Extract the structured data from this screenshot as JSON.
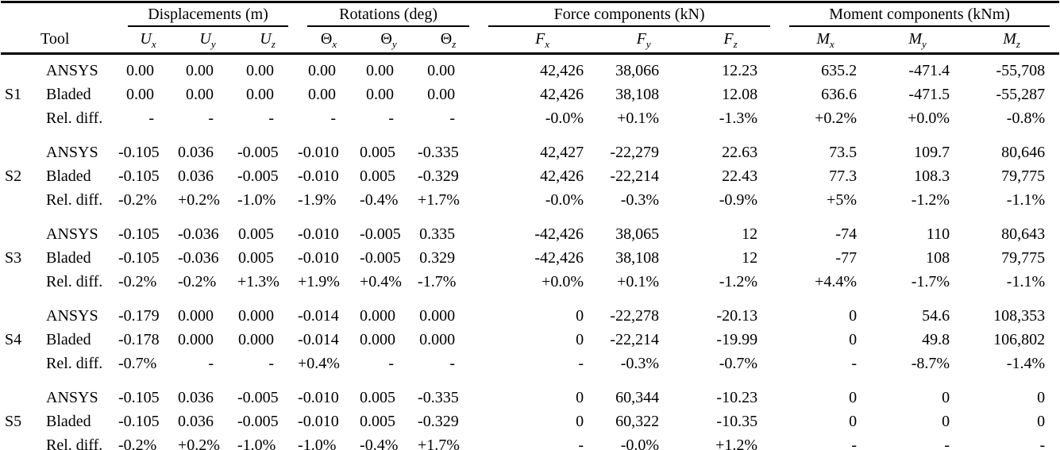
{
  "table": {
    "tool_header": "Tool",
    "row_types": [
      "ANSYS",
      "Bladed",
      "Rel. diff."
    ],
    "groups": [
      {
        "label": "Displacements (m)",
        "columns": [
          {
            "base": "U",
            "sub": "x",
            "italic": true
          },
          {
            "base": "U",
            "sub": "y",
            "italic": true
          },
          {
            "base": "U",
            "sub": "z",
            "italic": true
          }
        ]
      },
      {
        "label": "Rotations (deg)",
        "columns": [
          {
            "base": "Θ",
            "sub": "x",
            "italic": false
          },
          {
            "base": "Θ",
            "sub": "y",
            "italic": false
          },
          {
            "base": "Θ",
            "sub": "z",
            "italic": false
          }
        ]
      },
      {
        "label": "Force components (kN)",
        "columns": [
          {
            "base": "F",
            "sub": "x",
            "italic": true
          },
          {
            "base": "F",
            "sub": "y",
            "italic": true
          },
          {
            "base": "F",
            "sub": "z",
            "italic": true
          }
        ]
      },
      {
        "label": "Moment components (kNm)",
        "columns": [
          {
            "base": "M",
            "sub": "x",
            "italic": true
          },
          {
            "base": "M",
            "sub": "y",
            "italic": true
          },
          {
            "base": "M",
            "sub": "z",
            "italic": true
          }
        ]
      }
    ],
    "sections": [
      {
        "id": "S1",
        "rows": [
          {
            "tool": "ANSYS",
            "values": [
              "0.00",
              "0.00",
              "0.00",
              "0.00",
              "0.00",
              "0.00",
              "42,426",
              "38,066",
              "12.23",
              "635.2",
              "-471.4",
              "-55,708"
            ]
          },
          {
            "tool": "Bladed",
            "values": [
              "0.00",
              "0.00",
              "0.00",
              "0.00",
              "0.00",
              "0.00",
              "42,426",
              "38,108",
              "12.08",
              "636.6",
              "-471.5",
              "-55,287"
            ]
          },
          {
            "tool": "Rel. diff.",
            "values": [
              "-",
              "-",
              "-",
              "-",
              "-",
              "-",
              "-0.0%",
              "+0.1%",
              "-1.3%",
              "+0.2%",
              "+0.0%",
              "-0.8%"
            ]
          }
        ]
      },
      {
        "id": "S2",
        "rows": [
          {
            "tool": "ANSYS",
            "values": [
              "-0.105",
              "0.036",
              "-0.005",
              "-0.010",
              "0.005",
              "-0.335",
              "42,427",
              "-22,279",
              "22.63",
              "73.5",
              "109.7",
              "80,646"
            ]
          },
          {
            "tool": "Bladed",
            "values": [
              "-0.105",
              "0.036",
              "-0.005",
              "-0.010",
              "0.005",
              "-0.329",
              "42,426",
              "-22,214",
              "22.43",
              "77.3",
              "108.3",
              "79,775"
            ]
          },
          {
            "tool": "Rel. diff.",
            "values": [
              "-0.2%",
              "+0.2%",
              "-1.0%",
              "-1.9%",
              "-0.4%",
              "+1.7%",
              "-0.0%",
              "-0.3%",
              "-0.9%",
              "+5%",
              "-1.2%",
              "-1.1%"
            ]
          }
        ]
      },
      {
        "id": "S3",
        "rows": [
          {
            "tool": "ANSYS",
            "values": [
              "-0.105",
              "-0.036",
              "0.005",
              "-0.010",
              "-0.005",
              "0.335",
              "-42,426",
              "38,065",
              "12",
              "-74",
              "110",
              "80,643"
            ]
          },
          {
            "tool": "Bladed",
            "values": [
              "-0.105",
              "-0.036",
              "0.005",
              "-0.010",
              "-0.005",
              "0.329",
              "-42,426",
              "38,108",
              "12",
              "-77",
              "108",
              "79,775"
            ]
          },
          {
            "tool": "Rel. diff.",
            "values": [
              "-0.2%",
              "-0.2%",
              "+1.3%",
              "+1.9%",
              "+0.4%",
              "-1.7%",
              "+0.0%",
              "+0.1%",
              "-1.2%",
              "+4.4%",
              "-1.7%",
              "-1.1%"
            ]
          }
        ]
      },
      {
        "id": "S4",
        "rows": [
          {
            "tool": "ANSYS",
            "values": [
              "-0.179",
              "0.000",
              "0.000",
              "-0.014",
              "0.000",
              "0.000",
              "0",
              "-22,278",
              "-20.13",
              "0",
              "54.6",
              "108,353"
            ]
          },
          {
            "tool": "Bladed",
            "values": [
              "-0.178",
              "0.000",
              "0.000",
              "-0.014",
              "0.000",
              "0.000",
              "0",
              "-22,214",
              "-19.99",
              "0",
              "49.8",
              "106,802"
            ]
          },
          {
            "tool": "Rel. diff.",
            "values": [
              "-0.7%",
              "-",
              "-",
              "+0.4%",
              "-",
              "-",
              "-",
              "-0.3%",
              "-0.7%",
              "-",
              "-8.7%",
              "-1.4%"
            ]
          }
        ]
      },
      {
        "id": "S5",
        "rows": [
          {
            "tool": "ANSYS",
            "values": [
              "-0.105",
              "0.036",
              "-0.005",
              "-0.010",
              "0.005",
              "-0.335",
              "0",
              "60,344",
              "-10.23",
              "0",
              "0",
              "0"
            ]
          },
          {
            "tool": "Bladed",
            "values": [
              "-0.105",
              "0.036",
              "-0.005",
              "-0.010",
              "0.005",
              "-0.329",
              "0",
              "60,322",
              "-10.35",
              "0",
              "0",
              "0"
            ]
          },
          {
            "tool": "Rel. diff.",
            "values": [
              "-0.2%",
              "+0.2%",
              "-1.0%",
              "-1.0%",
              "-0.4%",
              "+1.7%",
              "-",
              "-0.0%",
              "+1.2%",
              "-",
              "-",
              "-"
            ]
          }
        ]
      }
    ],
    "colors": {
      "text": "#000000",
      "rules": "#000000",
      "background": "#ffffff"
    }
  }
}
